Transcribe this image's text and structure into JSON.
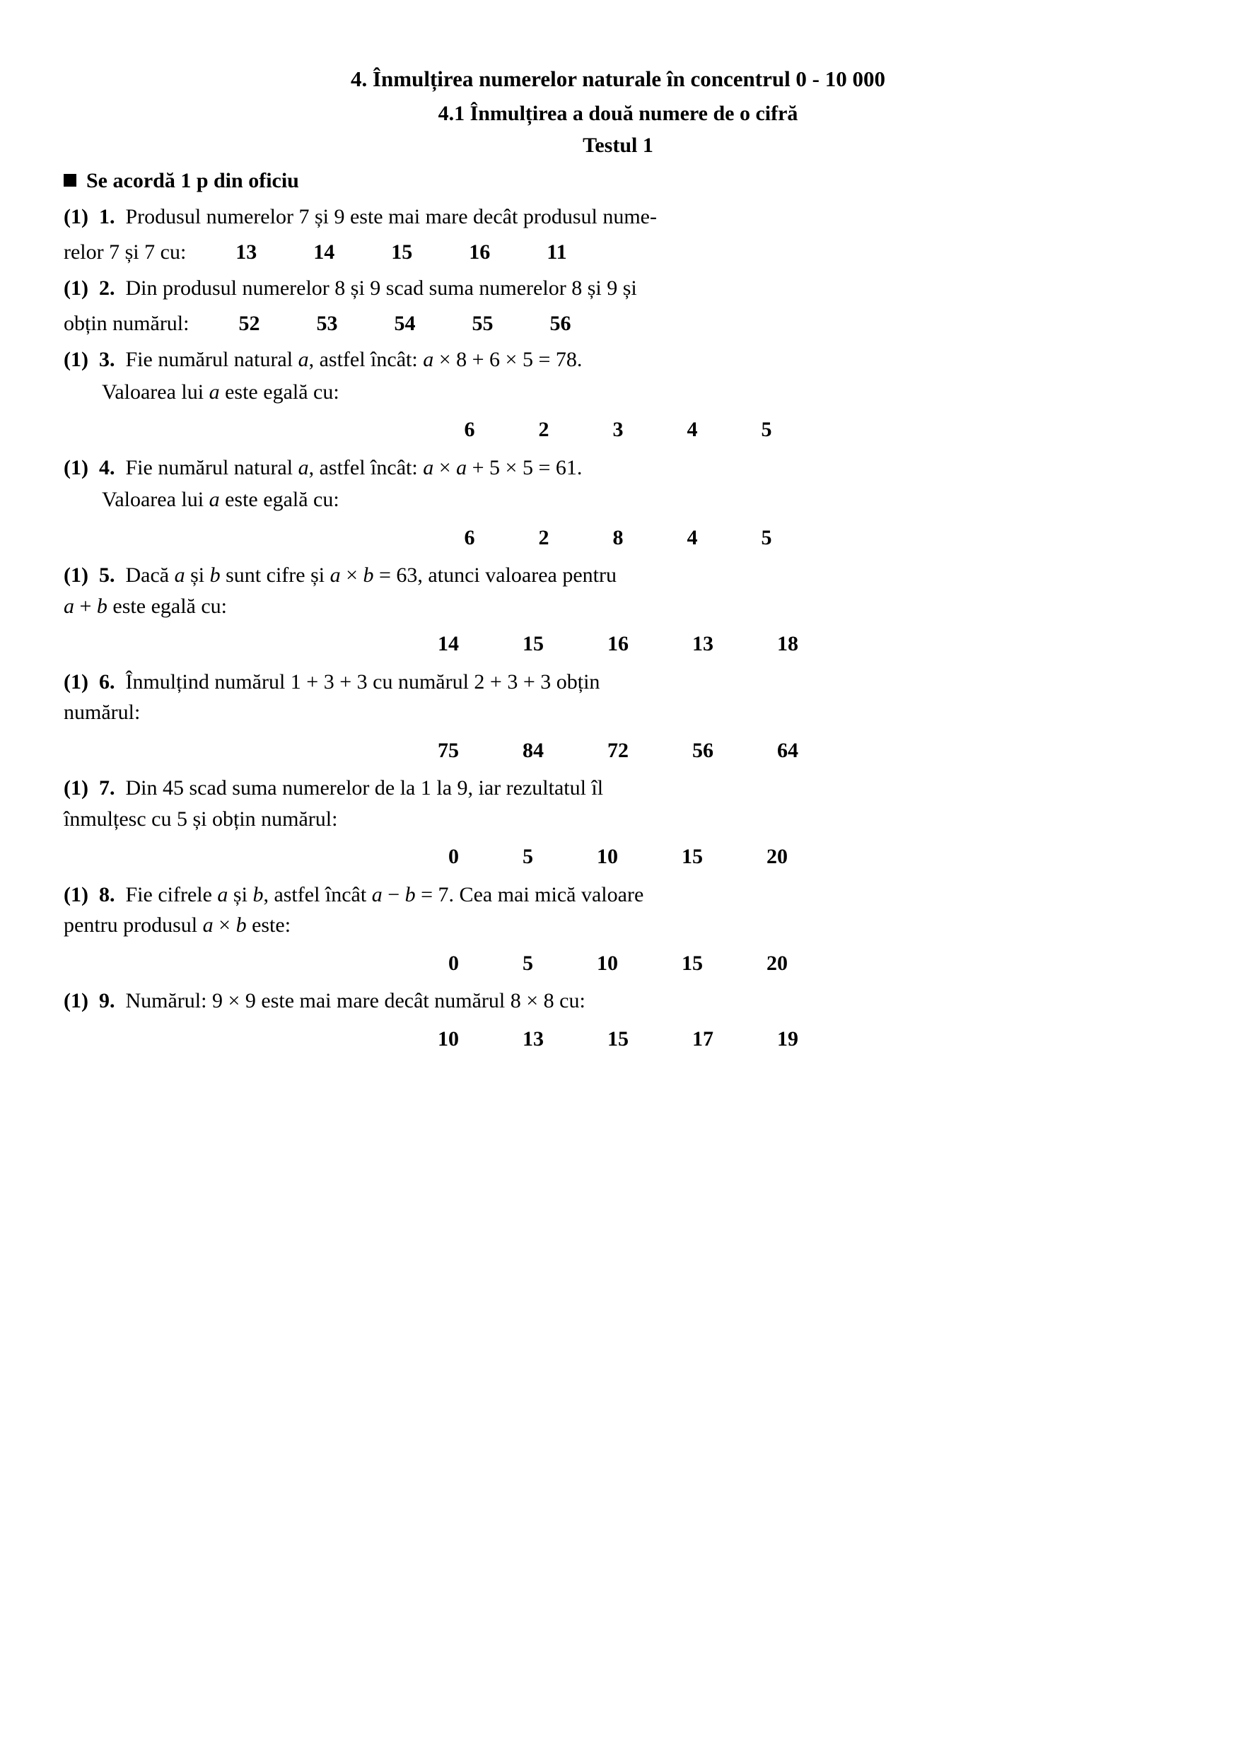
{
  "headings": {
    "h1": "4.  Înmulțirea numerelor naturale în concentrul 0 - 10 000",
    "h2": "4.1  Înmulțirea a două numere de o cifră",
    "h3": "Testul 1"
  },
  "oficiu": "Se acordă 1 p din oficiu",
  "questions": [
    {
      "points": "(1)",
      "num": "1.",
      "text_head": "Produsul numerelor 7 și 9 este mai mare decât produsul nume-",
      "text_tail": "relor 7 și 7 cu:",
      "answers": [
        "13",
        "14",
        "15",
        "16",
        "11"
      ],
      "inline_answers": true
    },
    {
      "points": "(1)",
      "num": "2.",
      "text_head": "Din produsul numerelor 8 și 9 scad suma numerelor 8 și 9 și",
      "text_tail": "obțin numărul:",
      "answers": [
        "52",
        "53",
        "54",
        "55",
        "56"
      ],
      "inline_answers": true
    },
    {
      "points": "(1)",
      "num": "3.",
      "text_head_html": "Fie numărul natural <span class='ital'>a</span>, astfel încât: <span class='ital'>a</span> × 8 + 6 × 5 = 78.",
      "sub_html": "Valoarea lui <span class='ital'>a</span> este egală cu:",
      "answers": [
        "6",
        "2",
        "3",
        "4",
        "5"
      ],
      "inline_answers": false
    },
    {
      "points": "(1)",
      "num": "4.",
      "text_head_html": "Fie numărul natural <span class='ital'>a</span>, astfel încât: <span class='ital'>a</span> × <span class='ital'>a</span> + 5 × 5 = 61.",
      "sub_html": "Valoarea lui <span class='ital'>a</span> este egală cu:",
      "answers": [
        "6",
        "2",
        "8",
        "4",
        "5"
      ],
      "inline_answers": false
    },
    {
      "points": "(1)",
      "num": "5.",
      "text_head_html": "Dacă <span class='ital'>a</span> și <span class='ital'>b</span> sunt cifre și <span class='ital'>a</span> × <span class='ital'>b</span> = 63, atunci valoarea pentru",
      "tail_html": "<span class='ital'>a</span> + <span class='ital'>b</span> este egală cu:",
      "answers": [
        "14",
        "15",
        "16",
        "13",
        "18"
      ],
      "inline_answers": false
    },
    {
      "points": "(1)",
      "num": "6.",
      "text_head": "Înmulțind numărul 1 + 3 + 3 cu numărul 2 + 3 + 3 obțin",
      "tail_plain": "numărul:",
      "answers": [
        "75",
        "84",
        "72",
        "56",
        "64"
      ],
      "inline_answers": false
    },
    {
      "points": "(1)",
      "num": "7.",
      "text_head": "Din 45 scad suma numerelor de la 1 la 9, iar rezultatul îl",
      "tail_plain": "înmulțesc cu 5 și obțin numărul:",
      "answers": [
        "0",
        "5",
        "10",
        "15",
        "20"
      ],
      "inline_answers": false
    },
    {
      "points": "(1)",
      "num": "8.",
      "text_head_html": "Fie cifrele <span class='ital'>a</span> și <span class='ital'>b</span>, astfel încât <span class='ital'>a</span> − <span class='ital'>b</span> = 7. Cea mai mică valoare",
      "tail_html": "pentru produsul <span class='ital'>a</span> × <span class='ital'>b</span> este:",
      "answers": [
        "0",
        "5",
        "10",
        "15",
        "20"
      ],
      "inline_answers": false
    },
    {
      "points": "(1)",
      "num": "9.",
      "text_head": "Numărul: 9 × 9 este mai mare decât numărul 8 × 8 cu:",
      "answers": [
        "10",
        "13",
        "15",
        "17",
        "19"
      ],
      "inline_answers": false
    }
  ]
}
